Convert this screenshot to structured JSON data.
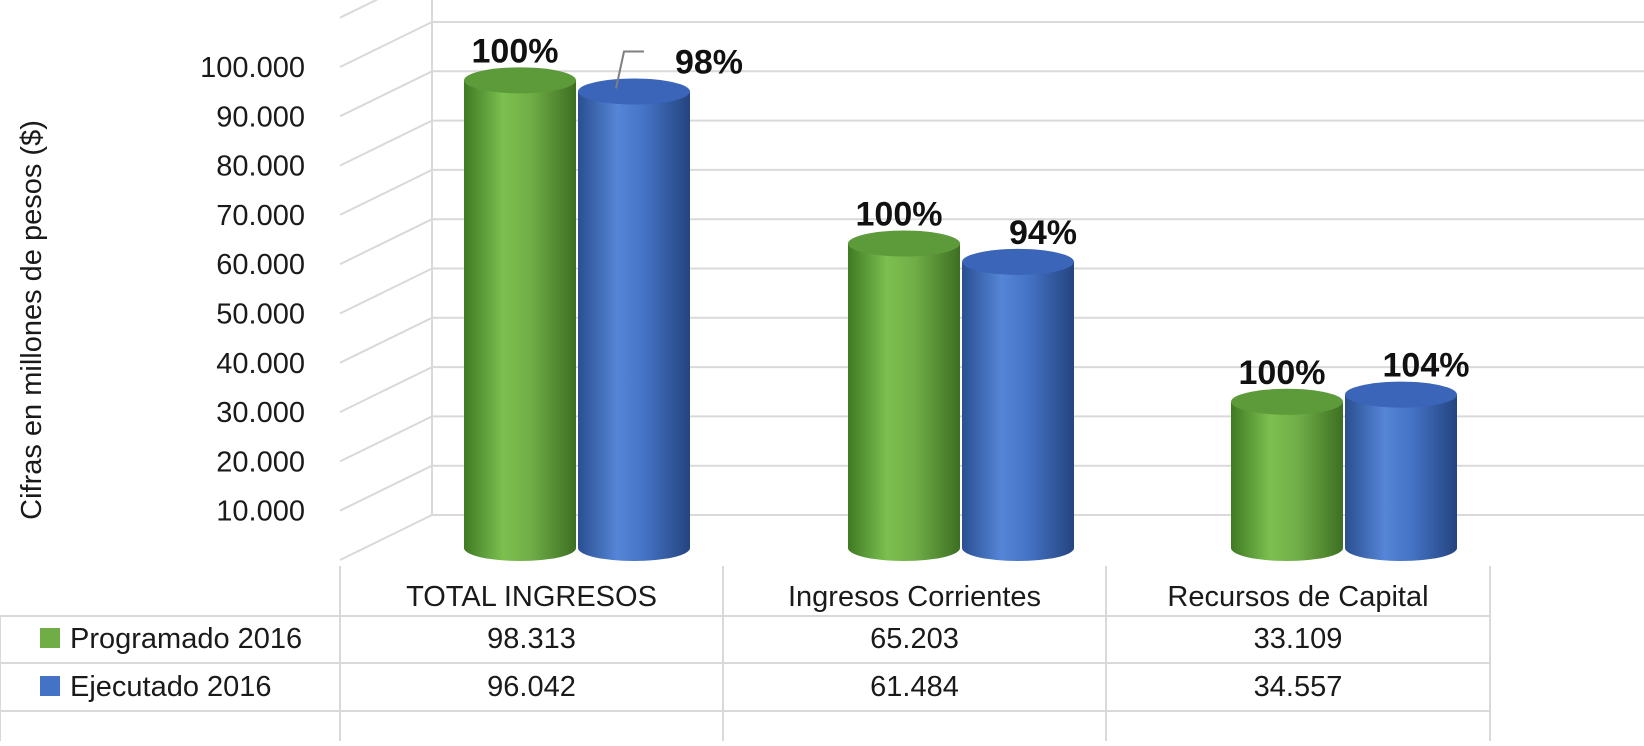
{
  "chart_data": {
    "type": "bar",
    "ylabel": "Cifras en millones de pesos ($)",
    "ylim": [
      0,
      100000
    ],
    "yticks": [
      "10.000",
      "20.000",
      "30.000",
      "40.000",
      "50.000",
      "60.000",
      "70.000",
      "80.000",
      "90.000",
      "100.000"
    ],
    "grid": true,
    "legend": "data-table",
    "categories": [
      "TOTAL INGRESOS",
      "Ingresos Corrientes",
      "Recursos de Capital"
    ],
    "series": [
      {
        "name": "Programado 2016",
        "color": "#70ad47",
        "values": [
          98313,
          65203,
          33109
        ],
        "value_labels": [
          "98.313",
          "65.203",
          "33.109"
        ],
        "percent_labels": [
          "100%",
          "100%",
          "100%"
        ]
      },
      {
        "name": "Ejecutado 2016",
        "color": "#4472c4",
        "values": [
          96042,
          61484,
          34557
        ],
        "value_labels": [
          "96.042",
          "61.484",
          "34.557"
        ],
        "percent_labels": [
          "98%",
          "94%",
          "104%"
        ]
      }
    ]
  }
}
